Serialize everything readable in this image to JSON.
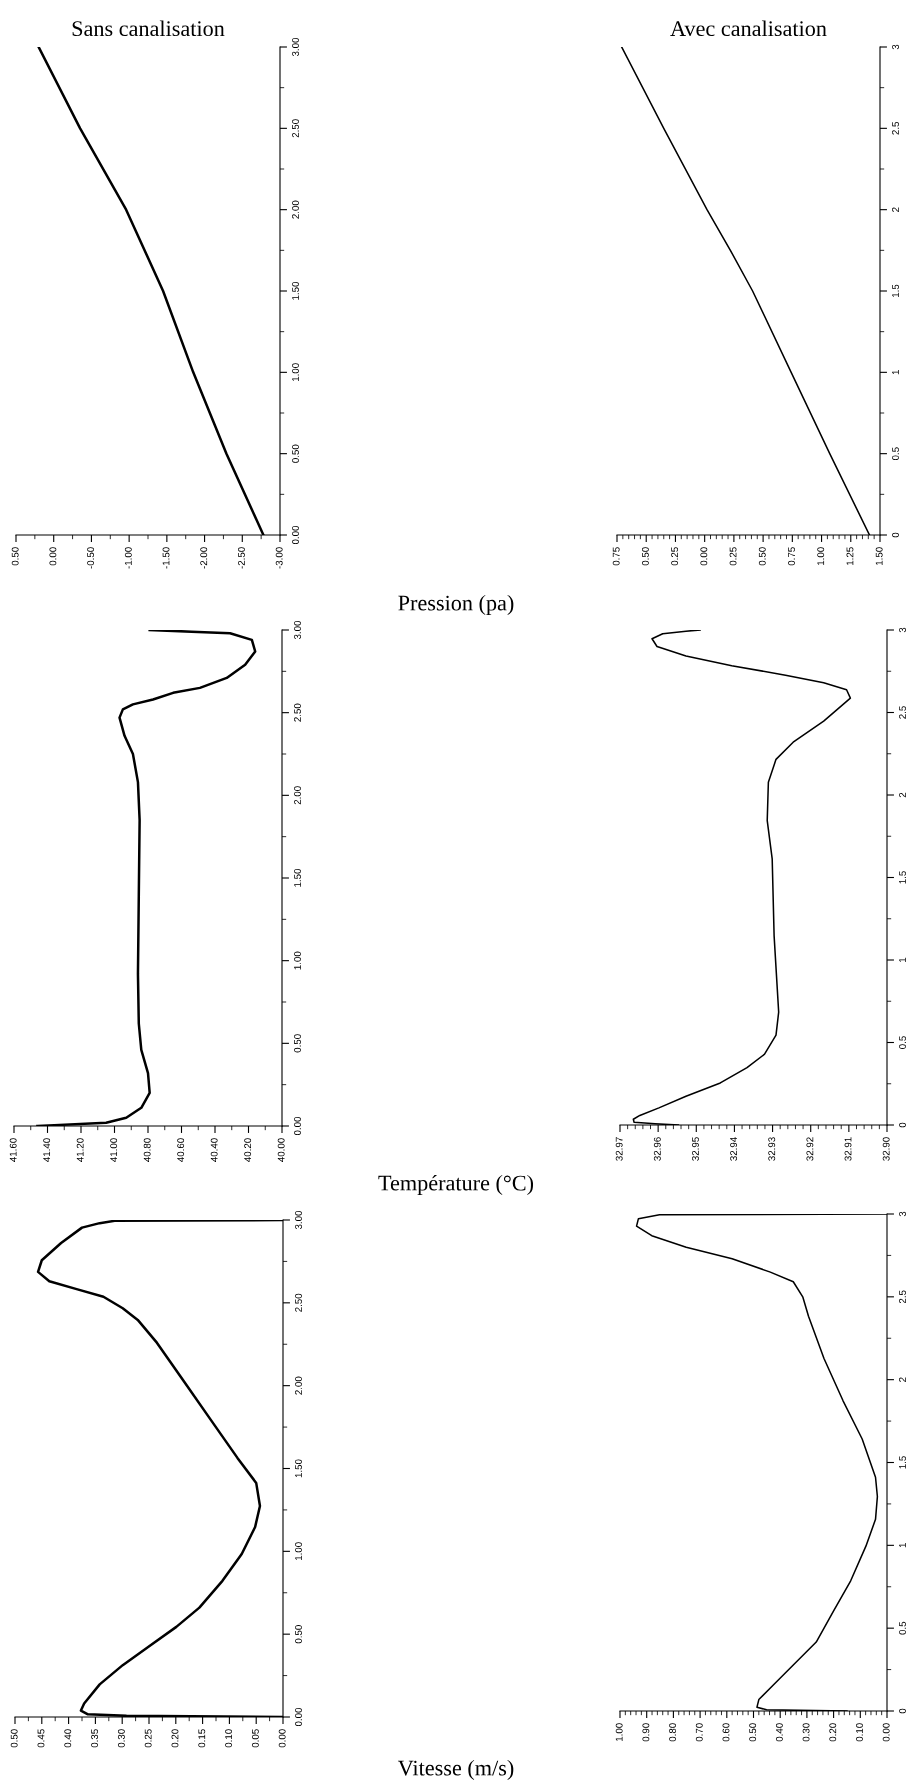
{
  "chart_data": [
    {
      "type": "line",
      "title": "Sans canalisation",
      "xlabel": "Pression (pa)",
      "series": [
        {
          "color": "#000000",
          "x": [
            -2.78,
            -2.29,
            -1.85,
            -1.45,
            -0.96,
            -0.35,
            0.2
          ],
          "values": [
            0,
            0.5,
            1,
            1.5,
            2,
            2.5,
            3
          ]
        }
      ],
      "xlim": [
        0.5,
        -3.0
      ],
      "ylim": [
        0,
        3
      ],
      "xticks": [
        {
          "value": 0.5,
          "label": "0.50"
        },
        {
          "value": 0.25,
          "label": null
        },
        {
          "value": 0,
          "label": "0.00"
        },
        {
          "value": -0.25,
          "label": null
        },
        {
          "value": -0.5,
          "label": "-0.50"
        },
        {
          "value": -0.75,
          "label": null
        },
        {
          "value": -1,
          "label": "-1.00"
        },
        {
          "value": -1.25,
          "label": null
        },
        {
          "value": -1.5,
          "label": "-1.50"
        },
        {
          "value": -1.75,
          "label": null
        },
        {
          "value": -2,
          "label": "-2.00"
        },
        {
          "value": -2.25,
          "label": null
        },
        {
          "value": -2.5,
          "label": "-2.50"
        },
        {
          "value": -2.75,
          "label": null
        },
        {
          "value": -3,
          "label": "-3.00"
        }
      ],
      "yticks": [
        {
          "value": 0,
          "label": "0.00"
        },
        {
          "value": 0.25,
          "label": null
        },
        {
          "value": 0.5,
          "label": "0.50"
        },
        {
          "value": 0.75,
          "label": null
        },
        {
          "value": 1,
          "label": "1.00"
        },
        {
          "value": 1.25,
          "label": null
        },
        {
          "value": 1.5,
          "label": "1.50"
        },
        {
          "value": 1.75,
          "label": null
        },
        {
          "value": 2,
          "label": "2.00"
        },
        {
          "value": 2.25,
          "label": null
        },
        {
          "value": 2.5,
          "label": "2.50"
        },
        {
          "value": 2.75,
          "label": null
        },
        {
          "value": 3,
          "label": "3.00"
        }
      ]
    },
    {
      "type": "line",
      "title": "Avec canalisation",
      "series": [
        {
          "color": "#000000",
          "x": [
            -1.41,
            -1.07,
            -0.74,
            -0.41,
            -0.22,
            -0.02,
            0.35,
            0.71
          ],
          "values": [
            0,
            0.5,
            1,
            1.5,
            1.75,
            2,
            2.5,
            3
          ]
        }
      ],
      "xlim": [
        0.75,
        -1.5
      ],
      "ylim": [
        0,
        3
      ],
      "xticks": [
        {
          "value": 0.75,
          "label": "0.75"
        },
        {
          "value": 0.7,
          "label": null
        },
        {
          "value": 0.65,
          "label": null
        },
        {
          "value": 0.6,
          "label": null
        },
        {
          "value": 0.55,
          "label": null
        },
        {
          "value": 0.5,
          "label": "0.50"
        },
        {
          "value": 0.45,
          "label": null
        },
        {
          "value": 0.4,
          "label": null
        },
        {
          "value": 0.35,
          "label": null
        },
        {
          "value": 0.3,
          "label": null
        },
        {
          "value": 0.25,
          "label": "0.25"
        },
        {
          "value": 0.2,
          "label": null
        },
        {
          "value": 0.15,
          "label": null
        },
        {
          "value": 0.1,
          "label": null
        },
        {
          "value": 0.05,
          "label": null
        },
        {
          "value": 0,
          "label": "0.00"
        },
        {
          "value": -0.05,
          "label": null
        },
        {
          "value": -0.1,
          "label": null
        },
        {
          "value": -0.15,
          "label": null
        },
        {
          "value": -0.2,
          "label": null
        },
        {
          "value": -0.25,
          "label": "0.25"
        },
        {
          "value": -0.3,
          "label": null
        },
        {
          "value": -0.35,
          "label": null
        },
        {
          "value": -0.4,
          "label": null
        },
        {
          "value": -0.45,
          "label": null
        },
        {
          "value": -0.5,
          "label": "0.50"
        },
        {
          "value": -0.55,
          "label": null
        },
        {
          "value": -0.6,
          "label": null
        },
        {
          "value": -0.65,
          "label": null
        },
        {
          "value": -0.7,
          "label": null
        },
        {
          "value": -0.75,
          "label": "0.75"
        },
        {
          "value": -0.8,
          "label": null
        },
        {
          "value": -0.85,
          "label": null
        },
        {
          "value": -0.9,
          "label": null
        },
        {
          "value": -0.95,
          "label": null
        },
        {
          "value": -1,
          "label": "1.00"
        },
        {
          "value": -1.05,
          "label": null
        },
        {
          "value": -1.1,
          "label": null
        },
        {
          "value": -1.15,
          "label": null
        },
        {
          "value": -1.2,
          "label": null
        },
        {
          "value": -1.25,
          "label": "1.25"
        },
        {
          "value": -1.3,
          "label": null
        },
        {
          "value": -1.35,
          "label": null
        },
        {
          "value": -1.4,
          "label": null
        },
        {
          "value": -1.45,
          "label": null
        },
        {
          "value": -1.5,
          "label": "1.50"
        }
      ],
      "yticks": [
        0,
        {
          "value": 0.25,
          "label": null
        },
        0.5,
        {
          "value": 0.75,
          "label": null
        },
        1,
        {
          "value": 1.25,
          "label": null
        },
        1.5,
        {
          "value": 1.75,
          "label": null
        },
        2,
        {
          "value": 2.25,
          "label": null
        },
        2.5,
        {
          "value": 2.75,
          "label": null
        },
        3
      ]
    },
    {
      "type": "line",
      "xlabel": "Température (°C)",
      "series": [
        {
          "color": "#000000",
          "x": [
            41.46,
            41.36,
            41.05,
            40.93,
            40.84,
            40.79,
            40.8,
            40.84,
            40.855,
            40.86,
            40.855,
            40.85,
            40.86,
            40.89,
            40.94,
            40.97,
            40.95,
            40.89,
            40.77,
            40.65,
            40.49,
            40.33,
            40.22,
            40.16,
            40.18,
            40.31,
            40.54,
            40.79
          ],
          "values": [
            0,
            0.005,
            0.02,
            0.05,
            0.11,
            0.2,
            0.32,
            0.46,
            0.62,
            0.92,
            1.39,
            1.85,
            2.08,
            2.25,
            2.36,
            2.47,
            2.52,
            2.55,
            2.58,
            2.62,
            2.65,
            2.71,
            2.79,
            2.87,
            2.94,
            2.98,
            2.99,
            3.0
          ]
        }
      ],
      "xlim": [
        41.6,
        40.0
      ],
      "ylim": [
        0,
        3
      ],
      "xticks": [
        {
          "value": 41.6,
          "label": "41.60"
        },
        {
          "value": 41.5,
          "label": null
        },
        {
          "value": 41.4,
          "label": "41.40"
        },
        {
          "value": 41.3,
          "label": null
        },
        {
          "value": 41.2,
          "label": "41.20"
        },
        {
          "value": 41.1,
          "label": null
        },
        {
          "value": 41.0,
          "label": "41.00"
        },
        {
          "value": 40.9,
          "label": null
        },
        {
          "value": 40.8,
          "label": "40.80"
        },
        {
          "value": 40.7,
          "label": null
        },
        {
          "value": 40.6,
          "label": "40.60"
        },
        {
          "value": 40.5,
          "label": null
        },
        {
          "value": 40.4,
          "label": "40.40"
        },
        {
          "value": 40.3,
          "label": null
        },
        {
          "value": 40.2,
          "label": "40.20"
        },
        {
          "value": 40.1,
          "label": null
        },
        {
          "value": 40.0,
          "label": "40.00"
        }
      ],
      "yticks": [
        {
          "value": 0,
          "label": "0.00"
        },
        {
          "value": 0.25,
          "label": null
        },
        {
          "value": 0.5,
          "label": "0.50"
        },
        {
          "value": 0.75,
          "label": null
        },
        {
          "value": 1,
          "label": "1.00"
        },
        {
          "value": 1.25,
          "label": null
        },
        {
          "value": 1.5,
          "label": "1.50"
        },
        {
          "value": 1.75,
          "label": null
        },
        {
          "value": 2,
          "label": "2.00"
        },
        {
          "value": 2.25,
          "label": null
        },
        {
          "value": 2.5,
          "label": "2.50"
        },
        {
          "value": 2.75,
          "label": null
        },
        {
          "value": 3,
          "label": "3.00"
        }
      ]
    },
    {
      "type": "line",
      "series": [
        {
          "color": "#000000",
          "x": [
            32.9547,
            32.9608,
            32.9663,
            32.9665,
            32.9648,
            32.9598,
            32.9527,
            32.9437,
            32.9367,
            32.9321,
            32.9291,
            32.9284,
            32.9296,
            32.9301,
            32.9314,
            32.9311,
            32.9291,
            32.9246,
            32.9166,
            32.9096,
            32.9106,
            32.9166,
            32.9266,
            32.9407,
            32.9527,
            32.9603,
            32.9616,
            32.9588,
            32.9527,
            32.949
          ],
          "values": [
            0,
            0.007,
            0.016,
            0.035,
            0.058,
            0.104,
            0.174,
            0.255,
            0.348,
            0.429,
            0.545,
            0.684,
            1.148,
            1.613,
            1.845,
            2.077,
            2.216,
            2.32,
            2.448,
            2.587,
            2.638,
            2.68,
            2.726,
            2.784,
            2.842,
            2.9,
            2.947,
            2.977,
            2.993,
            3.0
          ]
        }
      ],
      "xlim": [
        32.97,
        32.9
      ],
      "ylim": [
        0,
        3
      ],
      "xticks": [
        {
          "value": 32.97,
          "label": "32.97"
        },
        {
          "value": 32.968,
          "label": null
        },
        {
          "value": 32.966,
          "label": null
        },
        {
          "value": 32.964,
          "label": null
        },
        {
          "value": 32.962,
          "label": null
        },
        {
          "value": 32.96,
          "label": "32.96"
        },
        {
          "value": 32.958,
          "label": null
        },
        {
          "value": 32.956,
          "label": null
        },
        {
          "value": 32.954,
          "label": null
        },
        {
          "value": 32.952,
          "label": null
        },
        {
          "value": 32.95,
          "label": "32.95"
        },
        {
          "value": 32.948,
          "label": null
        },
        {
          "value": 32.946,
          "label": null
        },
        {
          "value": 32.944,
          "label": null
        },
        {
          "value": 32.942,
          "label": null
        },
        {
          "value": 32.94,
          "label": "32.94"
        },
        {
          "value": 32.938,
          "label": null
        },
        {
          "value": 32.936,
          "label": null
        },
        {
          "value": 32.934,
          "label": null
        },
        {
          "value": 32.932,
          "label": null
        },
        {
          "value": 32.93,
          "label": "32.93"
        },
        {
          "value": 32.928,
          "label": null
        },
        {
          "value": 32.926,
          "label": null
        },
        {
          "value": 32.924,
          "label": null
        },
        {
          "value": 32.922,
          "label": null
        },
        {
          "value": 32.92,
          "label": "32.92"
        },
        {
          "value": 32.918,
          "label": null
        },
        {
          "value": 32.916,
          "label": null
        },
        {
          "value": 32.914,
          "label": null
        },
        {
          "value": 32.912,
          "label": null
        },
        {
          "value": 32.91,
          "label": "32.91"
        },
        {
          "value": 32.908,
          "label": null
        },
        {
          "value": 32.906,
          "label": null
        },
        {
          "value": 32.904,
          "label": null
        },
        {
          "value": 32.902,
          "label": null
        },
        {
          "value": 32.9,
          "label": "32.90"
        }
      ],
      "yticks": [
        0,
        {
          "value": 0.25,
          "label": null
        },
        0.5,
        {
          "value": 0.75,
          "label": null
        },
        1,
        {
          "value": 1.25,
          "label": null
        },
        1.5,
        {
          "value": 1.75,
          "label": null
        },
        2,
        {
          "value": 2.25,
          "label": null
        },
        2.5,
        {
          "value": 2.75,
          "label": null
        },
        3
      ]
    },
    {
      "type": "line",
      "xlabel": "Vitesse (m/s)",
      "series": [
        {
          "color": "#000000",
          "x": [
            0.0,
            0.292,
            0.364,
            0.377,
            0.371,
            0.342,
            0.299,
            0.249,
            0.199,
            0.156,
            0.113,
            0.077,
            0.052,
            0.043,
            0.05,
            0.085,
            0.135,
            0.185,
            0.235,
            0.271,
            0.299,
            0.335,
            0.385,
            0.436,
            0.457,
            0.45,
            0.414,
            0.375,
            0.342,
            0.314,
            0.0
          ],
          "values": [
            0,
            0.007,
            0.016,
            0.039,
            0.081,
            0.197,
            0.313,
            0.429,
            0.544,
            0.66,
            0.822,
            0.984,
            1.147,
            1.274,
            1.413,
            1.564,
            1.795,
            2.027,
            2.258,
            2.397,
            2.467,
            2.537,
            2.583,
            2.63,
            2.687,
            2.757,
            2.861,
            2.954,
            2.981,
            2.995,
            3.0
          ]
        }
      ],
      "xlim": [
        0.5,
        0.0
      ],
      "ylim": [
        0,
        3
      ],
      "xticks": [
        {
          "value": 0.5,
          "label": "0.50"
        },
        {
          "value": 0.475,
          "label": null
        },
        {
          "value": 0.45,
          "label": "0.45"
        },
        {
          "value": 0.425,
          "label": null
        },
        {
          "value": 0.4,
          "label": "0.40"
        },
        {
          "value": 0.375,
          "label": null
        },
        {
          "value": 0.35,
          "label": "0.35"
        },
        {
          "value": 0.325,
          "label": null
        },
        {
          "value": 0.3,
          "label": "0.30"
        },
        {
          "value": 0.275,
          "label": null
        },
        {
          "value": 0.25,
          "label": "0.25"
        },
        {
          "value": 0.225,
          "label": null
        },
        {
          "value": 0.2,
          "label": "0.20"
        },
        {
          "value": 0.175,
          "label": null
        },
        {
          "value": 0.15,
          "label": "0.15"
        },
        {
          "value": 0.125,
          "label": null
        },
        {
          "value": 0.1,
          "label": "0.10"
        },
        {
          "value": 0.075,
          "label": null
        },
        {
          "value": 0.05,
          "label": "0.05"
        },
        {
          "value": 0.025,
          "label": null
        },
        {
          "value": 0.0,
          "label": "0.00"
        }
      ],
      "yticks": [
        {
          "value": 0,
          "label": "0.00"
        },
        {
          "value": 0.25,
          "label": null
        },
        {
          "value": 0.5,
          "label": "0.50"
        },
        {
          "value": 0.75,
          "label": null
        },
        {
          "value": 1,
          "label": "1.00"
        },
        {
          "value": 1.25,
          "label": null
        },
        {
          "value": 1.5,
          "label": "1.50"
        },
        {
          "value": 1.75,
          "label": null
        },
        {
          "value": 2,
          "label": "2.00"
        },
        {
          "value": 2.25,
          "label": null
        },
        {
          "value": 2.5,
          "label": "2.50"
        },
        {
          "value": 2.75,
          "label": null
        },
        {
          "value": 3,
          "label": "3.00"
        }
      ]
    },
    {
      "type": "line",
      "series": [
        {
          "color": "#000000",
          "x": [
            0.15,
            0.451,
            0.487,
            0.48,
            0.423,
            0.351,
            0.265,
            0.201,
            0.136,
            0.079,
            0.043,
            0.036,
            0.043,
            0.093,
            0.165,
            0.236,
            0.294,
            0.315,
            0.351,
            0.437,
            0.58,
            0.752,
            0.881,
            0.938,
            0.931,
            0.852,
            0.0
          ],
          "values": [
            0,
            0.007,
            0.023,
            0.069,
            0.162,
            0.278,
            0.416,
            0.601,
            0.786,
            0.995,
            1.157,
            1.295,
            1.411,
            1.642,
            1.874,
            2.128,
            2.383,
            2.498,
            2.591,
            2.649,
            2.73,
            2.799,
            2.869,
            2.927,
            2.972,
            2.995,
            3.0
          ]
        }
      ],
      "xlim": [
        1.0,
        0.0
      ],
      "ylim": [
        0,
        3
      ],
      "xticks": [
        {
          "value": 1.0,
          "label": "1.00"
        },
        {
          "value": 0.98,
          "label": null
        },
        {
          "value": 0.96,
          "label": null
        },
        {
          "value": 0.94,
          "label": null
        },
        {
          "value": 0.92,
          "label": null
        },
        {
          "value": 0.9,
          "label": "0.90"
        },
        {
          "value": 0.88,
          "label": null
        },
        {
          "value": 0.86,
          "label": null
        },
        {
          "value": 0.84,
          "label": null
        },
        {
          "value": 0.82,
          "label": null
        },
        {
          "value": 0.8,
          "label": "0.80"
        },
        {
          "value": 0.78,
          "label": null
        },
        {
          "value": 0.76,
          "label": null
        },
        {
          "value": 0.74,
          "label": null
        },
        {
          "value": 0.72,
          "label": null
        },
        {
          "value": 0.7,
          "label": "0.70"
        },
        {
          "value": 0.68,
          "label": null
        },
        {
          "value": 0.66,
          "label": null
        },
        {
          "value": 0.64,
          "label": null
        },
        {
          "value": 0.62,
          "label": null
        },
        {
          "value": 0.6,
          "label": "0.60"
        },
        {
          "value": 0.58,
          "label": null
        },
        {
          "value": 0.56,
          "label": null
        },
        {
          "value": 0.54,
          "label": null
        },
        {
          "value": 0.52,
          "label": null
        },
        {
          "value": 0.5,
          "label": "0.50"
        },
        {
          "value": 0.48,
          "label": null
        },
        {
          "value": 0.46,
          "label": null
        },
        {
          "value": 0.44,
          "label": null
        },
        {
          "value": 0.42,
          "label": null
        },
        {
          "value": 0.4,
          "label": "0.40"
        },
        {
          "value": 0.38,
          "label": null
        },
        {
          "value": 0.36,
          "label": null
        },
        {
          "value": 0.34,
          "label": null
        },
        {
          "value": 0.32,
          "label": null
        },
        {
          "value": 0.3,
          "label": "0.30"
        },
        {
          "value": 0.28,
          "label": null
        },
        {
          "value": 0.26,
          "label": null
        },
        {
          "value": 0.24,
          "label": null
        },
        {
          "value": 0.22,
          "label": null
        },
        {
          "value": 0.2,
          "label": "0.20"
        },
        {
          "value": 0.18,
          "label": null
        },
        {
          "value": 0.16,
          "label": null
        },
        {
          "value": 0.14,
          "label": null
        },
        {
          "value": 0.12,
          "label": null
        },
        {
          "value": 0.1,
          "label": "0.10"
        },
        {
          "value": 0.08,
          "label": null
        },
        {
          "value": 0.06,
          "label": null
        },
        {
          "value": 0.04,
          "label": null
        },
        {
          "value": 0.02,
          "label": null
        },
        {
          "value": 0.0,
          "label": "0.00"
        }
      ],
      "yticks": [
        0,
        {
          "value": 0.25,
          "label": null
        },
        0.5,
        {
          "value": 0.75,
          "label": null
        },
        1,
        {
          "value": 1.25,
          "label": null
        },
        1.5,
        {
          "value": 1.75,
          "label": null
        },
        2,
        {
          "value": 2.25,
          "label": null
        },
        2.5,
        {
          "value": 2.75,
          "label": null
        },
        3
      ]
    }
  ]
}
